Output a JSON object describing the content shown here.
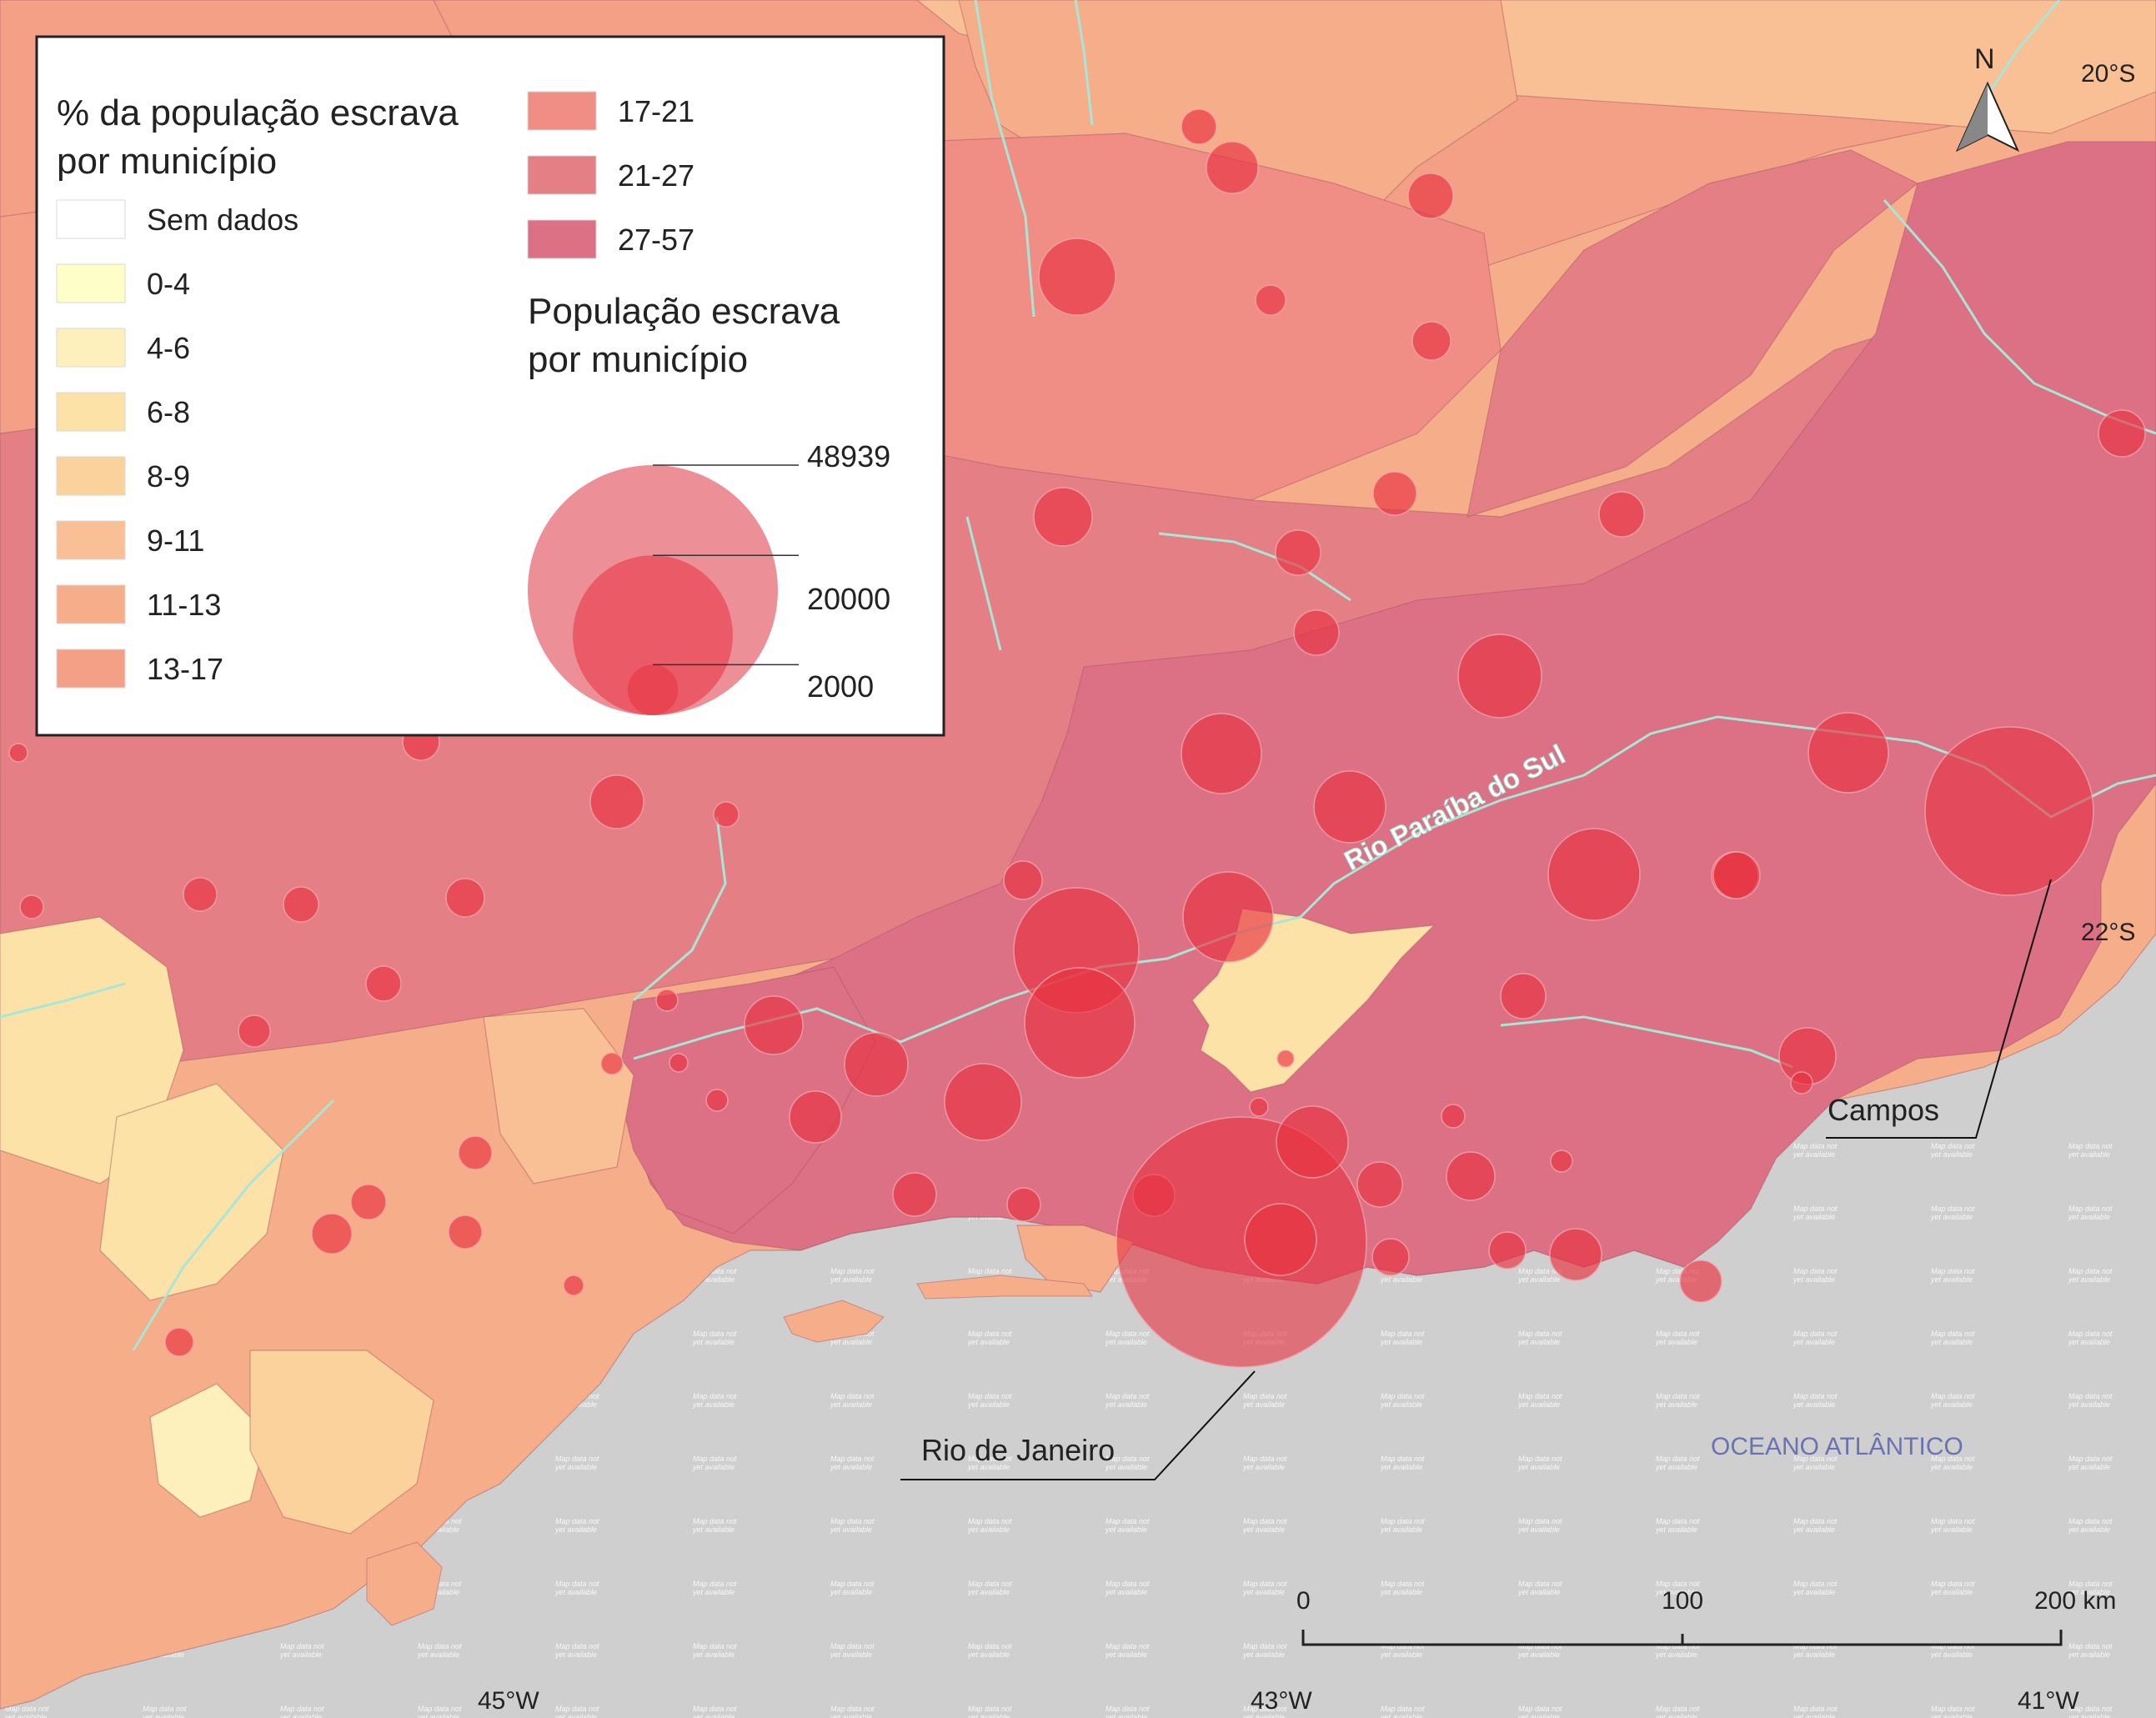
{
  "legend": {
    "title_pct_line1": "% da população escrava",
    "title_pct_line2": "por município",
    "classes": [
      {
        "label": "Sem dados",
        "color": "#ffffff"
      },
      {
        "label": "0-4",
        "color": "#fefec8"
      },
      {
        "label": "4-6",
        "color": "#fdf0bc"
      },
      {
        "label": "6-8",
        "color": "#fde2a8"
      },
      {
        "label": "8-9",
        "color": "#fbd29c"
      },
      {
        "label": "9-11",
        "color": "#f9c095"
      },
      {
        "label": "11-13",
        "color": "#f6ad8a"
      },
      {
        "label": "13-17",
        "color": "#f4a086"
      },
      {
        "label": "17-21",
        "color": "#f08e86"
      },
      {
        "label": "21-27",
        "color": "#e57f86"
      },
      {
        "label": "27-57",
        "color": "#dc7085"
      }
    ],
    "title_pop_line1": "População escrava",
    "title_pop_line2": "por município",
    "sizes": [
      {
        "label": "48939",
        "value": 48939
      },
      {
        "label": "20000",
        "value": 20000
      },
      {
        "label": "2000",
        "value": 2000
      }
    ]
  },
  "labels": {
    "north": "N",
    "river": "Rio Paraíba do Sul",
    "city_rio": "Rio de Janeiro",
    "city_campos": "Campos",
    "ocean": "OCEANO ATLÂNTICO",
    "lat_20": "20°S",
    "lat_22": "22°S",
    "lon_45": "45°W",
    "lon_43": "43°W",
    "lon_41": "41°W"
  },
  "scalebar": {
    "tick_0": "0",
    "tick_100": "100",
    "tick_200": "200 km"
  },
  "watermark": "Map data not yet available",
  "colors": {
    "sea": "#cfcfcf",
    "circle": "#e8313f",
    "river": "#a8e6d6",
    "ocean_label": "#6a72b0"
  }
}
